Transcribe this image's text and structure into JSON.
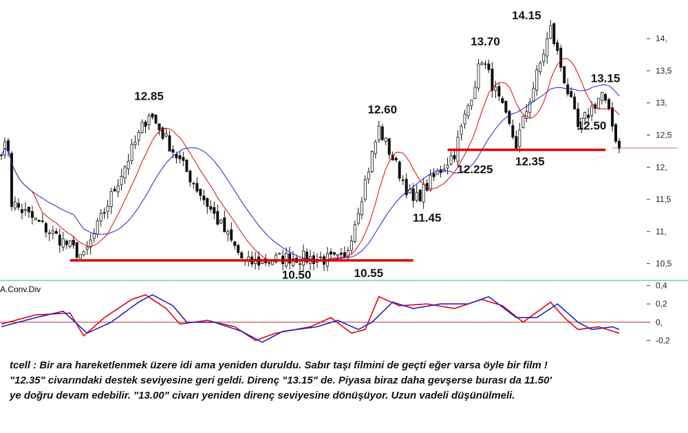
{
  "chart_data": [
    {
      "type": "candlestick",
      "title": "",
      "ylim": [
        10.25,
        14.6
      ],
      "y_ticks": [
        "14,",
        "13,5",
        "13,",
        "12,5",
        "12,",
        "11,5",
        "11,",
        "10,5"
      ],
      "y_tick_values": [
        14.0,
        13.5,
        13.0,
        12.5,
        12.0,
        11.5,
        11.0,
        10.5
      ],
      "key_points": [
        {
          "index": 3,
          "value": 11.45
        },
        {
          "index": 24,
          "value": 10.6
        },
        {
          "index": 43,
          "value": 12.85
        },
        {
          "index": 71,
          "value": 10.5
        },
        {
          "index": 84,
          "value": 10.6
        },
        {
          "index": 100,
          "value": 10.55
        },
        {
          "index": 110,
          "value": 12.6
        },
        {
          "index": 120,
          "value": 11.45
        },
        {
          "index": 132,
          "value": 12.225
        },
        {
          "index": 140,
          "value": 13.7
        },
        {
          "index": 150,
          "value": 12.35
        },
        {
          "index": 160,
          "value": 14.15
        },
        {
          "index": 168,
          "value": 12.6
        },
        {
          "index": 175,
          "value": 13.15
        },
        {
          "index": 180,
          "value": 12.3
        }
      ],
      "moving_averages": [
        {
          "color": "#e00000",
          "period": 10
        },
        {
          "color": "#1f1fcf",
          "period": 22
        }
      ],
      "support_lines": [
        {
          "value": 10.55,
          "from_index": 20,
          "to_index": 120,
          "color": "#e00000"
        },
        {
          "value": 12.27,
          "from_index": 130,
          "to_index": 176,
          "color": "#e00000"
        }
      ],
      "last_price_line": {
        "value": 12.3,
        "color": "#e36a6a"
      },
      "annotations": [
        {
          "text": "12.85",
          "index": 43,
          "value": 12.85
        },
        {
          "text": "10.50",
          "index": 86,
          "value": 10.5
        },
        {
          "text": "10.55",
          "index": 107,
          "value": 10.55
        },
        {
          "text": "12.60",
          "index": 111,
          "value": 12.6
        },
        {
          "text": "11.45",
          "index": 124,
          "value": 11.45
        },
        {
          "text": "13.70",
          "index": 141,
          "value": 13.7
        },
        {
          "text": "14.15",
          "index": 153,
          "value": 14.15
        },
        {
          "text": "12.225",
          "index": 138,
          "value": 12.225
        },
        {
          "text": "12.35",
          "index": 154,
          "value": 12.35
        },
        {
          "text": "13.15",
          "index": 176,
          "value": 13.15
        },
        {
          "text": "12.50",
          "index": 172,
          "value": 12.5
        }
      ]
    },
    {
      "type": "line",
      "title": "A.Conv.Div",
      "ylim": [
        -0.25,
        0.45
      ],
      "y_ticks": [
        "0,4",
        "0,2",
        "0,",
        "-0,2"
      ],
      "y_tick_values": [
        0.4,
        0.2,
        0.0,
        -0.2
      ],
      "zero_line": 0.0,
      "series": [
        {
          "color": "#e00000",
          "key_points": [
            [
              0,
              -0.02
            ],
            [
              10,
              0.08
            ],
            [
              20,
              0.1
            ],
            [
              24,
              -0.15
            ],
            [
              30,
              0.05
            ],
            [
              38,
              0.25
            ],
            [
              42,
              0.3
            ],
            [
              48,
              0.15
            ],
            [
              52,
              -0.02
            ],
            [
              60,
              0.02
            ],
            [
              68,
              -0.05
            ],
            [
              74,
              -0.2
            ],
            [
              80,
              -0.12
            ],
            [
              90,
              -0.05
            ],
            [
              96,
              0.05
            ],
            [
              102,
              -0.12
            ],
            [
              106,
              -0.08
            ],
            [
              110,
              0.28
            ],
            [
              116,
              0.18
            ],
            [
              124,
              0.2
            ],
            [
              132,
              0.15
            ],
            [
              140,
              0.25
            ],
            [
              146,
              0.18
            ],
            [
              152,
              0.0
            ],
            [
              160,
              0.22
            ],
            [
              164,
              0.05
            ],
            [
              168,
              -0.08
            ],
            [
              174,
              -0.05
            ],
            [
              180,
              -0.12
            ]
          ]
        },
        {
          "color": "#1f1fcf",
          "key_points": [
            [
              0,
              -0.05
            ],
            [
              10,
              0.05
            ],
            [
              18,
              0.12
            ],
            [
              25,
              -0.12
            ],
            [
              32,
              0.0
            ],
            [
              40,
              0.22
            ],
            [
              44,
              0.3
            ],
            [
              50,
              0.18
            ],
            [
              54,
              0.0
            ],
            [
              62,
              0.0
            ],
            [
              70,
              -0.1
            ],
            [
              76,
              -0.22
            ],
            [
              82,
              -0.1
            ],
            [
              92,
              -0.05
            ],
            [
              98,
              0.02
            ],
            [
              104,
              -0.08
            ],
            [
              108,
              0.0
            ],
            [
              114,
              0.22
            ],
            [
              120,
              0.15
            ],
            [
              128,
              0.2
            ],
            [
              136,
              0.2
            ],
            [
              142,
              0.28
            ],
            [
              150,
              0.05
            ],
            [
              156,
              0.05
            ],
            [
              162,
              0.2
            ],
            [
              168,
              0.0
            ],
            [
              172,
              -0.08
            ],
            [
              178,
              -0.05
            ],
            [
              180,
              -0.08
            ]
          ]
        }
      ]
    }
  ],
  "comment": {
    "line1": "tcell : Bir ara hareketlenmek üzere idi ama yeniden duruldu. Sabır taşı filmini de geçti eğer varsa öyle bir film !",
    "line2": "\"12.35\" civarındaki destek seviyesine geri geldi. Direnç \"13.15\" de. Piyasa biraz daha gevşerse burası da 11.50'",
    "line3": "ye doğru devam edebilir. \"13.00\" civarı yeniden direnç seviyesine dönüşüyor. Uzun vadeli düşünülmeli."
  }
}
